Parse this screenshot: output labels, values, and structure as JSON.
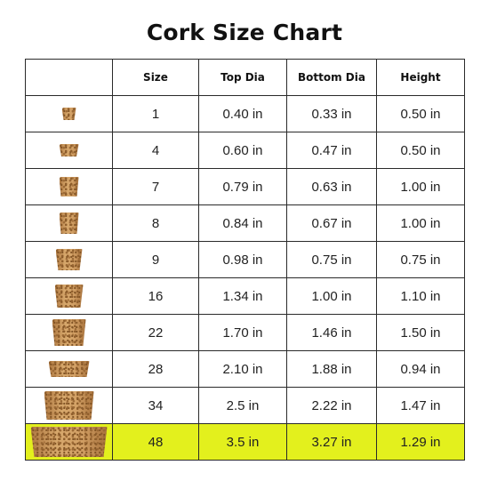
{
  "title": "Cork Size Chart",
  "headers": {
    "image": "",
    "size": "Size",
    "top_dia": "Top Dia",
    "bottom_dia": "Bottom Dia",
    "height": "Height"
  },
  "rows": [
    {
      "size": "1",
      "top": "0.40 in",
      "bottom": "0.33 in",
      "height": "0.50 in",
      "highlighted": false
    },
    {
      "size": "4",
      "top": "0.60 in",
      "bottom": "0.47 in",
      "height": "0.50 in",
      "highlighted": false
    },
    {
      "size": "7",
      "top": "0.79 in",
      "bottom": "0.63 in",
      "height": "1.00 in",
      "highlighted": false
    },
    {
      "size": "8",
      "top": "0.84 in",
      "bottom": "0.67 in",
      "height": "1.00 in",
      "highlighted": false
    },
    {
      "size": "9",
      "top": "0.98 in",
      "bottom": "0.75 in",
      "height": "0.75 in",
      "highlighted": false
    },
    {
      "size": "16",
      "top": "1.34 in",
      "bottom": "1.00 in",
      "height": "1.10 in",
      "highlighted": false
    },
    {
      "size": "22",
      "top": "1.70 in",
      "bottom": "1.46 in",
      "height": "1.50 in",
      "highlighted": false
    },
    {
      "size": "28",
      "top": "2.10 in",
      "bottom": "1.88 in",
      "height": "0.94 in",
      "highlighted": false
    },
    {
      "size": "34",
      "top": "2.5 in",
      "bottom": "2.22 in",
      "height": "1.47 in",
      "highlighted": false
    },
    {
      "size": "48",
      "top": "3.5 in",
      "bottom": "3.27 in",
      "height": "1.29 in",
      "highlighted": true
    }
  ],
  "colors": {
    "highlight": "#e3f01d",
    "border": "#2a2a2a",
    "cork": "#c9955a"
  },
  "icons": {
    "row_image": "cork-stopper-icon"
  }
}
